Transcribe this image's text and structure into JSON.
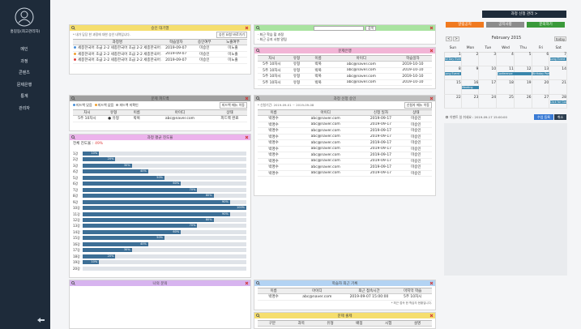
{
  "user": {
    "name": "홍길동(최고관리자)"
  },
  "menu": [
    "메인",
    "과정",
    "콘텐츠",
    "문제은행",
    "통계",
    "관리자"
  ],
  "approval": {
    "title": "승인 대기열",
    "note": "* 내가 담당 한 과정에 대한 승인 내역입니다.",
    "button": "승인 요청 바로가기",
    "headers": [
      "과정명",
      "학습일자",
      "승인여부",
      "노출여부"
    ],
    "dot_colors": [
      "#4a90d9",
      "#f0a030",
      "#e04040"
    ],
    "rows": [
      [
        "세종한국어 초급 2-2 세종한국어 초급 2-2 세종한국어 초급 2-2",
        "2019-09-07",
        "미승인",
        "미노출"
      ],
      [
        "세종한국어 초급 2-2 세종한국어 초급 2-2 세종한국어 초급 2-2",
        "2019-09-07",
        "미승인",
        "미노출"
      ],
      [
        "세종한국어 초급 2-2 세종한국어 초급 2-2 세종한국어 초급 2-2",
        "2019-09-07",
        "미승인",
        "미노출"
      ]
    ]
  },
  "feedback": {
    "title": "문제 피드백",
    "legend": [
      "피드백 있음",
      "피드백 없음",
      "피드백 미확인"
    ],
    "legend_colors": [
      "#4a90d9",
      "#f0a030",
      "#9e9e9e"
    ],
    "button": "피드백 메뉴 이동",
    "headers": [
      "차시",
      "유형",
      "이름",
      "아이디",
      "상태"
    ],
    "rows": [
      [
        "5주 10차시",
        "● 유형",
        "박복",
        "abc@naver.com",
        "피드백 완료"
      ]
    ]
  },
  "progress": {
    "title": "과정 평균 진도율",
    "total_label": "전체 진도율 :",
    "total_value": "49%",
    "xlim": [
      0,
      100
    ],
    "categories": [
      "1강",
      "2강",
      "3강",
      "4강",
      "5강",
      "6강",
      "7강",
      "8강",
      "9강",
      "10강",
      "11강",
      "12강",
      "13강",
      "14강",
      "15강",
      "16강",
      "17강",
      "18강",
      "19강",
      "20강"
    ],
    "values": [
      10,
      20,
      30,
      40,
      50,
      60,
      70,
      80,
      90,
      100,
      90,
      80,
      70,
      60,
      50,
      40,
      30,
      20,
      10,
      0
    ],
    "value_labels": [
      "10%",
      "20%",
      "30%",
      "40%",
      "50%",
      "60%",
      "70%",
      "80%",
      "90%",
      "100%",
      "90%",
      "80%",
      "70%",
      "60%",
      "50%",
      "40%",
      "30%",
      "20%",
      "10%",
      null
    ]
  },
  "inquiry": {
    "title": "나의 문의"
  },
  "search": {
    "button": "검색",
    "lines": [
      "· 최근 학습 할 과정",
      "· 최근 공지 사항 알림"
    ]
  },
  "bank": {
    "title": "문제은행",
    "headers": [
      "차시",
      "유형",
      "이름",
      "아이디",
      "학습일자"
    ],
    "rows": [
      [
        "5주 10차시",
        "유형",
        "박복",
        "abc@naver.com",
        "2019-10-10"
      ],
      [
        "5주 10차시",
        "유형",
        "박복",
        "abc@naver.com",
        "2019-10-10"
      ],
      [
        "5주 10차시",
        "유형",
        "박복",
        "abc@naver.com",
        "2019-10-10"
      ],
      [
        "5주 10차시",
        "유형",
        "박복",
        "abc@naver.com",
        "2019-10-10"
      ]
    ]
  },
  "apply": {
    "title": "과정 신청 승인",
    "note": "* 신청기간: 2019-09-01 ~ 2019-09-08",
    "button": "신청자 메뉴 이동",
    "headers": [
      "이름",
      "아이디",
      "신청 일자",
      "상태"
    ],
    "rows": [
      [
        "박명수",
        "abc@naver.com",
        "2019-09-17",
        "미승인"
      ],
      [
        "박명수",
        "abc@naver.com",
        "2019-09-17",
        "미승인"
      ],
      [
        "박명수",
        "abc@naver.com",
        "2019-09-17",
        "미승인"
      ],
      [
        "박명수",
        "abc@naver.com",
        "2019-09-17",
        "미승인"
      ],
      [
        "박명수",
        "abc@naver.com",
        "2019-09-17",
        "미승인"
      ],
      [
        "박명수",
        "abc@naver.com",
        "2019-09-17",
        "미승인"
      ],
      [
        "박명수",
        "abc@naver.com",
        "2019-09-17",
        "미승인"
      ],
      [
        "박명수",
        "abc@naver.com",
        "2019-09-17",
        "미승인"
      ],
      [
        "박명수",
        "abc@naver.com",
        "2019-09-17",
        "미승인"
      ],
      [
        "박명수",
        "abc@naver.com",
        "2019-09-17",
        "미승인"
      ]
    ]
  },
  "recent": {
    "title": "학습자 최근 기록",
    "headers": [
      "이름",
      "아이디",
      "최근 접속시간",
      "마지막 학습"
    ],
    "rows": [
      [
        "박명수",
        "abc@naver.com",
        "2019-09-07 15:00:00",
        "5주 10차시"
      ]
    ],
    "note": "* 최근 접속 한 학습자 현황입니다."
  },
  "exam": {
    "title": "문제 출제",
    "headers": [
      "구분",
      "과목",
      "유형",
      "배점",
      "시험",
      "설명"
    ]
  },
  "top_button": "과정 신청 관리 >",
  "quick_buttons": [
    {
      "label": "알림공지",
      "color": "#f07a20"
    },
    {
      "label": "공지사항",
      "color": "#8c8c8c"
    },
    {
      "label": "문의하기",
      "color": "#3a9a3a"
    }
  ],
  "calendar": {
    "title": "February 2015",
    "today": "today",
    "prev": "<",
    "next": ">",
    "weekdays": [
      "Sun",
      "Mon",
      "Tue",
      "Wed",
      "Thu",
      "Fri",
      "Sat"
    ],
    "weeks": [
      [
        1,
        2,
        3,
        4,
        5,
        6,
        7
      ],
      [
        8,
        9,
        10,
        11,
        12,
        13,
        14
      ],
      [
        15,
        16,
        17,
        18,
        19,
        20,
        21
      ],
      [
        22,
        23,
        24,
        25,
        26,
        27,
        28
      ]
    ],
    "events": [
      {
        "label": "All Day Event",
        "week": 0,
        "day": 0,
        "span": 1
      },
      {
        "label": "Long Event",
        "week": 0,
        "day": 6,
        "span": 1
      },
      {
        "label": "Long Event",
        "week": 1,
        "day": 0,
        "span": 1
      },
      {
        "label": "Conference",
        "week": 1,
        "day": 3,
        "span": 2
      },
      {
        "label": "Birthday Party",
        "week": 1,
        "day": 5,
        "span": 1
      },
      {
        "label": "Meeting",
        "week": 2,
        "day": 1,
        "span": 1
      },
      {
        "label": "Click for Goo",
        "week": 3,
        "day": 6,
        "span": 1
      }
    ],
    "check_label": "이벤트 일 쉬세요 : 2019-09-17 15:00:00",
    "save": "수업 등록",
    "cancel": "취소"
  }
}
